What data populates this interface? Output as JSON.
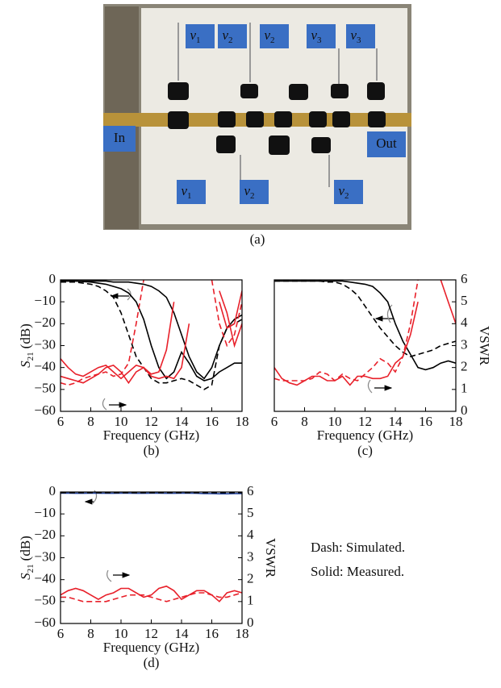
{
  "photo": {
    "labels_top": [
      {
        "v": "v",
        "sub": "1"
      },
      {
        "v": "v",
        "sub": "2"
      },
      {
        "v": "v",
        "sub": "2"
      },
      {
        "v": "v",
        "sub": "3"
      },
      {
        "v": "v",
        "sub": "3"
      }
    ],
    "labels_bottom": [
      {
        "v": "v",
        "sub": "1"
      },
      {
        "v": "v",
        "sub": "2"
      },
      {
        "v": "v",
        "sub": "2"
      }
    ],
    "in": "In",
    "out": "Out",
    "caption": "(a)"
  },
  "notes": [
    "Dash: Simulated.",
    "Solid: Measured."
  ],
  "chart_data": [
    {
      "type": "line",
      "caption": "(b)",
      "xlabel": "Frequency (GHz)",
      "ylabel": {
        "main": "S",
        "sub": "21",
        "unit": "(dB)"
      },
      "x": [
        6,
        6.5,
        7,
        7.5,
        8,
        8.5,
        9,
        9.5,
        10,
        10.5,
        11,
        11.5,
        12,
        12.5,
        13,
        13.5,
        14,
        14.5,
        15,
        15.5,
        16,
        16.5,
        17,
        17.5,
        18
      ],
      "xlim": [
        6,
        18
      ],
      "xticks": [
        6,
        8,
        10,
        12,
        14,
        16,
        18
      ],
      "ylim": [
        -60,
        0
      ],
      "yticks": [
        0,
        {
          "value": -10,
          "label": "−10"
        },
        {
          "value": -20,
          "label": "−20"
        },
        {
          "value": -30,
          "label": "−30"
        },
        {
          "value": -40,
          "label": "−40"
        },
        {
          "value": -50,
          "label": "−50"
        },
        {
          "value": -60,
          "label": "−60"
        }
      ],
      "y2lim": [
        0,
        6
      ],
      "series": [
        {
          "color": "#000000",
          "dash": false,
          "values": [
            -0.5,
            -0.5,
            -0.5,
            -0.8,
            -1,
            -1.5,
            -2,
            -3,
            -4,
            -6,
            -10,
            -18,
            -30,
            -40,
            -45,
            -42,
            -33,
            -38,
            -44,
            -46,
            -45,
            -42,
            -40,
            -38,
            -38
          ]
        },
        {
          "color": "#000000",
          "dash": false,
          "values": [
            -0.5,
            -0.5,
            -0.5,
            -0.5,
            -0.5,
            -0.5,
            -0.5,
            -1,
            -1,
            -1,
            -1.5,
            -2,
            -3,
            -5,
            -8,
            -15,
            -25,
            -35,
            -42,
            -45,
            -40,
            -30,
            -22,
            -18,
            -16
          ]
        },
        {
          "color": "#000000",
          "dash": true,
          "values": [
            -1,
            -1,
            -1,
            -1.5,
            -2,
            -3,
            -5,
            -8,
            -15,
            -25,
            -35,
            -40,
            -45,
            -47,
            -47,
            -46,
            -45,
            -46,
            -48,
            -50,
            -48,
            -30,
            -22,
            -20,
            -18
          ]
        },
        {
          "color": "#e8202a",
          "dash": false,
          "axis": "y2",
          "values": [
            2.4,
            2.0,
            1.7,
            1.6,
            1.8,
            2.0,
            2.1,
            1.8,
            1.5,
            1.8,
            2.1,
            2.0,
            1.7,
            1.8,
            2.8,
            5.0,
            null,
            null,
            null,
            null,
            null,
            5.0,
            3.8,
            4.0,
            5.5
          ]
        },
        {
          "color": "#e8202a",
          "dash": false,
          "axis": "y2",
          "values": [
            1.6,
            1.5,
            1.4,
            1.3,
            1.5,
            1.7,
            2.0,
            2.1,
            1.8,
            1.3,
            1.8,
            2.0,
            1.6,
            1.5,
            1.6,
            1.5,
            2.0,
            4.0,
            null,
            null,
            null,
            5.5,
            4.5,
            3.0,
            4.0
          ]
        },
        {
          "color": "#e8202a",
          "dash": true,
          "axis": "y2",
          "values": [
            1.3,
            1.2,
            1.3,
            1.5,
            1.6,
            1.7,
            1.8,
            1.6,
            1.7,
            2.2,
            4.0,
            6,
            null,
            null,
            null,
            null,
            null,
            null,
            null,
            null,
            6,
            4.0,
            3.0,
            3.5,
            5.0
          ]
        }
      ]
    },
    {
      "type": "line",
      "caption": "(c)",
      "xlabel": "Frequency (GHz)",
      "y2label": "VSWR",
      "x": [
        6,
        6.5,
        7,
        7.5,
        8,
        8.5,
        9,
        9.5,
        10,
        10.5,
        11,
        11.5,
        12,
        12.5,
        13,
        13.5,
        14,
        14.5,
        15,
        15.5,
        16,
        16.5,
        17,
        17.5,
        18
      ],
      "xlim": [
        6,
        18
      ],
      "xticks": [
        6,
        8,
        10,
        12,
        14,
        16,
        18
      ],
      "ylim": [
        -60,
        0
      ],
      "y2lim": [
        0,
        6
      ],
      "y2ticks": [
        0,
        1,
        2,
        3,
        4,
        5,
        6
      ],
      "series": [
        {
          "color": "#000000",
          "dash": false,
          "values": [
            -0.5,
            -0.5,
            -0.5,
            -0.5,
            -0.5,
            -0.5,
            -0.5,
            -0.5,
            -0.5,
            -0.5,
            -1,
            -1.5,
            -2,
            -3,
            -6,
            -10,
            -20,
            -28,
            -34,
            -40,
            -41,
            -40,
            -38,
            -37,
            -38
          ]
        },
        {
          "color": "#000000",
          "dash": true,
          "values": [
            -0.5,
            -0.5,
            -0.5,
            -0.5,
            -0.5,
            -0.5,
            -0.5,
            -1,
            -1,
            -2,
            -4,
            -7,
            -12,
            -17,
            -22,
            -26,
            -30,
            -33,
            -35,
            -34,
            -33,
            -32,
            -30,
            -29,
            -28
          ]
        },
        {
          "color": "#e8202a",
          "dash": false,
          "axis": "y2",
          "values": [
            2.0,
            1.5,
            1.3,
            1.2,
            1.4,
            1.6,
            1.6,
            1.4,
            1.4,
            1.6,
            1.2,
            1.6,
            1.6,
            1.5,
            1.5,
            1.6,
            2.2,
            2.5,
            3.5,
            5,
            null,
            null,
            6,
            5,
            4
          ]
        },
        {
          "color": "#e8202a",
          "dash": true,
          "axis": "y2",
          "values": [
            1.5,
            1.4,
            1.4,
            1.4,
            1.4,
            1.5,
            1.8,
            1.7,
            1.4,
            1.7,
            1.5,
            1.4,
            1.7,
            2.0,
            2.4,
            2.2,
            1.8,
            2.5,
            4.0,
            6,
            null,
            null,
            null,
            null,
            null
          ]
        }
      ]
    },
    {
      "type": "line",
      "caption": "(d)",
      "xlabel": "Frequency (GHz)",
      "ylabel": {
        "main": "S",
        "sub": "21",
        "unit": "(dB)"
      },
      "y2label": "VSWR",
      "x": [
        6,
        6.5,
        7,
        7.5,
        8,
        8.5,
        9,
        9.5,
        10,
        10.5,
        11,
        11.5,
        12,
        12.5,
        13,
        13.5,
        14,
        14.5,
        15,
        15.5,
        16,
        16.5,
        17,
        17.5,
        18
      ],
      "xlim": [
        6,
        18
      ],
      "xticks": [
        6,
        8,
        10,
        12,
        14,
        16,
        18
      ],
      "ylim": [
        -60,
        0
      ],
      "yticks": [
        0,
        {
          "value": -10,
          "label": "−10"
        },
        {
          "value": -20,
          "label": "−20"
        },
        {
          "value": -30,
          "label": "−30"
        },
        {
          "value": -40,
          "label": "−40"
        },
        {
          "value": -50,
          "label": "−50"
        },
        {
          "value": -60,
          "label": "−60"
        }
      ],
      "y2lim": [
        0,
        6
      ],
      "y2ticks": [
        0,
        1,
        2,
        3,
        4,
        5,
        6
      ],
      "series": [
        {
          "color": "#1f3f9a",
          "dash": false,
          "values": [
            -0.5,
            -0.5,
            -0.6,
            -0.6,
            -0.5,
            -0.5,
            -0.6,
            -0.6,
            -0.5,
            -0.5,
            -0.6,
            -0.6,
            -0.5,
            -0.5,
            -0.6,
            -0.6,
            -0.5,
            -0.5,
            -0.6,
            -0.7,
            -0.7,
            -0.8,
            -0.8,
            -0.7,
            -0.7
          ]
        },
        {
          "color": "#000000",
          "dash": true,
          "values": [
            -0.3,
            -0.3,
            -0.3,
            -0.3,
            -0.3,
            -0.3,
            -0.3,
            -0.3,
            -0.3,
            -0.3,
            -0.3,
            -0.3,
            -0.3,
            -0.3,
            -0.3,
            -0.3,
            -0.3,
            -0.3,
            -0.3,
            -0.3,
            -0.3,
            -0.3,
            -0.3,
            -0.3,
            -0.3
          ]
        },
        {
          "color": "#e8202a",
          "dash": false,
          "axis": "y2",
          "values": [
            1.3,
            1.5,
            1.6,
            1.5,
            1.3,
            1.1,
            1.3,
            1.4,
            1.6,
            1.6,
            1.4,
            1.2,
            1.3,
            1.6,
            1.7,
            1.5,
            1.1,
            1.3,
            1.5,
            1.5,
            1.3,
            1.0,
            1.4,
            1.5,
            1.4
          ]
        },
        {
          "color": "#e8202a",
          "dash": true,
          "axis": "y2",
          "values": [
            1.2,
            1.2,
            1.1,
            1.0,
            1.0,
            1.0,
            1.0,
            1.1,
            1.2,
            1.3,
            1.3,
            1.3,
            1.2,
            1.1,
            1.0,
            1.1,
            1.2,
            1.3,
            1.4,
            1.4,
            1.3,
            1.2,
            1.2,
            1.3,
            1.4
          ]
        }
      ]
    }
  ]
}
